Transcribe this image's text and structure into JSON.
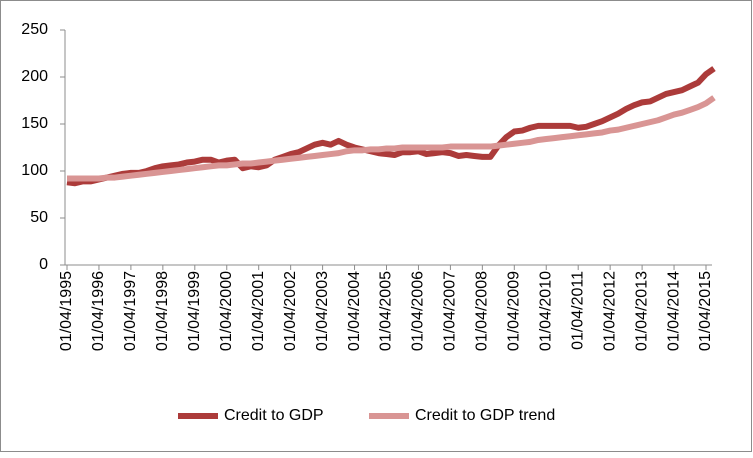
{
  "chart_data": {
    "type": "line",
    "categories": [
      "01/04/1995",
      null,
      null,
      null,
      "01/04/1996",
      null,
      null,
      null,
      "01/04/1997",
      null,
      null,
      null,
      "01/04/1998",
      null,
      null,
      null,
      "01/04/1999",
      null,
      null,
      null,
      "01/04/2000",
      null,
      null,
      null,
      "01/04/2001",
      null,
      null,
      null,
      "01/04/2002",
      null,
      null,
      null,
      "01/04/2003",
      null,
      null,
      null,
      "01/04/2004",
      null,
      null,
      null,
      "01/04/2005",
      null,
      null,
      null,
      "01/04/2006",
      null,
      null,
      null,
      "01/04/2007",
      null,
      null,
      null,
      "01/04/2008",
      null,
      null,
      null,
      "01/04/2009",
      null,
      null,
      null,
      "01/04/2010",
      null,
      null,
      null,
      "01/04/2011",
      null,
      null,
      null,
      "01/04/2012",
      null,
      null,
      null,
      "01/04/2013",
      null,
      null,
      null,
      "01/04/2014",
      null,
      null,
      null,
      "01/04/2015",
      null
    ],
    "series": [
      {
        "name": "Credit to GDP",
        "color": "#ac3b3a",
        "values": [
          88,
          87,
          89,
          89,
          91,
          93,
          95,
          97,
          98,
          98,
          100,
          103,
          105,
          106,
          107,
          109,
          110,
          112,
          112,
          109,
          111,
          112,
          103,
          105,
          104,
          106,
          112,
          115,
          118,
          120,
          124,
          128,
          130,
          128,
          132,
          128,
          125,
          123,
          121,
          119,
          118,
          117,
          120,
          120,
          121,
          118,
          119,
          120,
          119,
          116,
          117,
          116,
          115,
          115,
          127,
          136,
          142,
          143,
          146,
          148,
          148,
          148,
          148,
          148,
          146,
          147,
          150,
          153,
          157,
          161,
          166,
          170,
          173,
          174,
          178,
          182,
          184,
          186,
          190,
          194,
          203,
          209
        ]
      },
      {
        "name": "Credit to GDP trend",
        "color": "#d99594",
        "values": [
          92,
          92,
          92,
          92,
          92,
          93,
          93,
          94,
          95,
          96,
          97,
          98,
          99,
          100,
          101,
          102,
          103,
          104,
          105,
          106,
          106,
          107,
          108,
          108,
          109,
          110,
          111,
          112,
          113,
          114,
          115,
          116,
          117,
          118,
          119,
          121,
          122,
          122,
          123,
          123,
          124,
          124,
          125,
          125,
          125,
          125,
          125,
          125,
          126,
          126,
          126,
          126,
          126,
          126,
          127,
          128,
          129,
          130,
          131,
          133,
          134,
          135,
          136,
          137,
          138,
          139,
          140,
          141,
          143,
          144,
          146,
          148,
          150,
          152,
          154,
          157,
          160,
          162,
          165,
          168,
          172,
          178
        ]
      }
    ],
    "ylim": [
      0,
      250
    ],
    "yticks": [
      0,
      50,
      100,
      150,
      200,
      250
    ],
    "grid": false,
    "legend": "bottom"
  }
}
